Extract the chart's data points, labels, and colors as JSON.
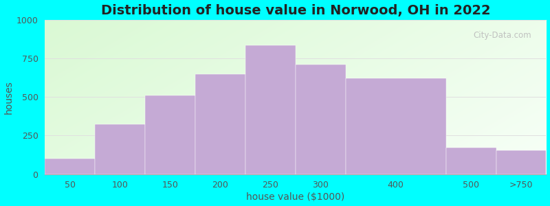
{
  "title": "Distribution of house value in Norwood, OH in 2022",
  "xlabel": "house value ($1000)",
  "ylabel": "houses",
  "bar_labels": [
    "50",
    "100",
    "150",
    "200",
    "250",
    "300",
    "400",
    "500",
    ">750"
  ],
  "bar_values": [
    100,
    325,
    510,
    650,
    835,
    710,
    620,
    170,
    155
  ],
  "bar_lefts": [
    0,
    1,
    2,
    3,
    4,
    5,
    6,
    8,
    9
  ],
  "bar_widths": [
    1,
    1,
    1,
    1,
    1,
    1,
    2,
    1,
    1
  ],
  "bar_color": "#c5aad5",
  "ylim": [
    0,
    1000
  ],
  "yticks": [
    0,
    250,
    500,
    750,
    1000
  ],
  "xlim": [
    0,
    10
  ],
  "xtick_positions": [
    0.5,
    1.5,
    2.5,
    3.5,
    4.5,
    5.5,
    7.0,
    8.5,
    9.5
  ],
  "outer_bg": "#00ffff",
  "title_fontsize": 14,
  "axis_label_fontsize": 10,
  "tick_fontsize": 9,
  "watermark_text": "City-Data.com",
  "grid_color": "#e0e0e0"
}
